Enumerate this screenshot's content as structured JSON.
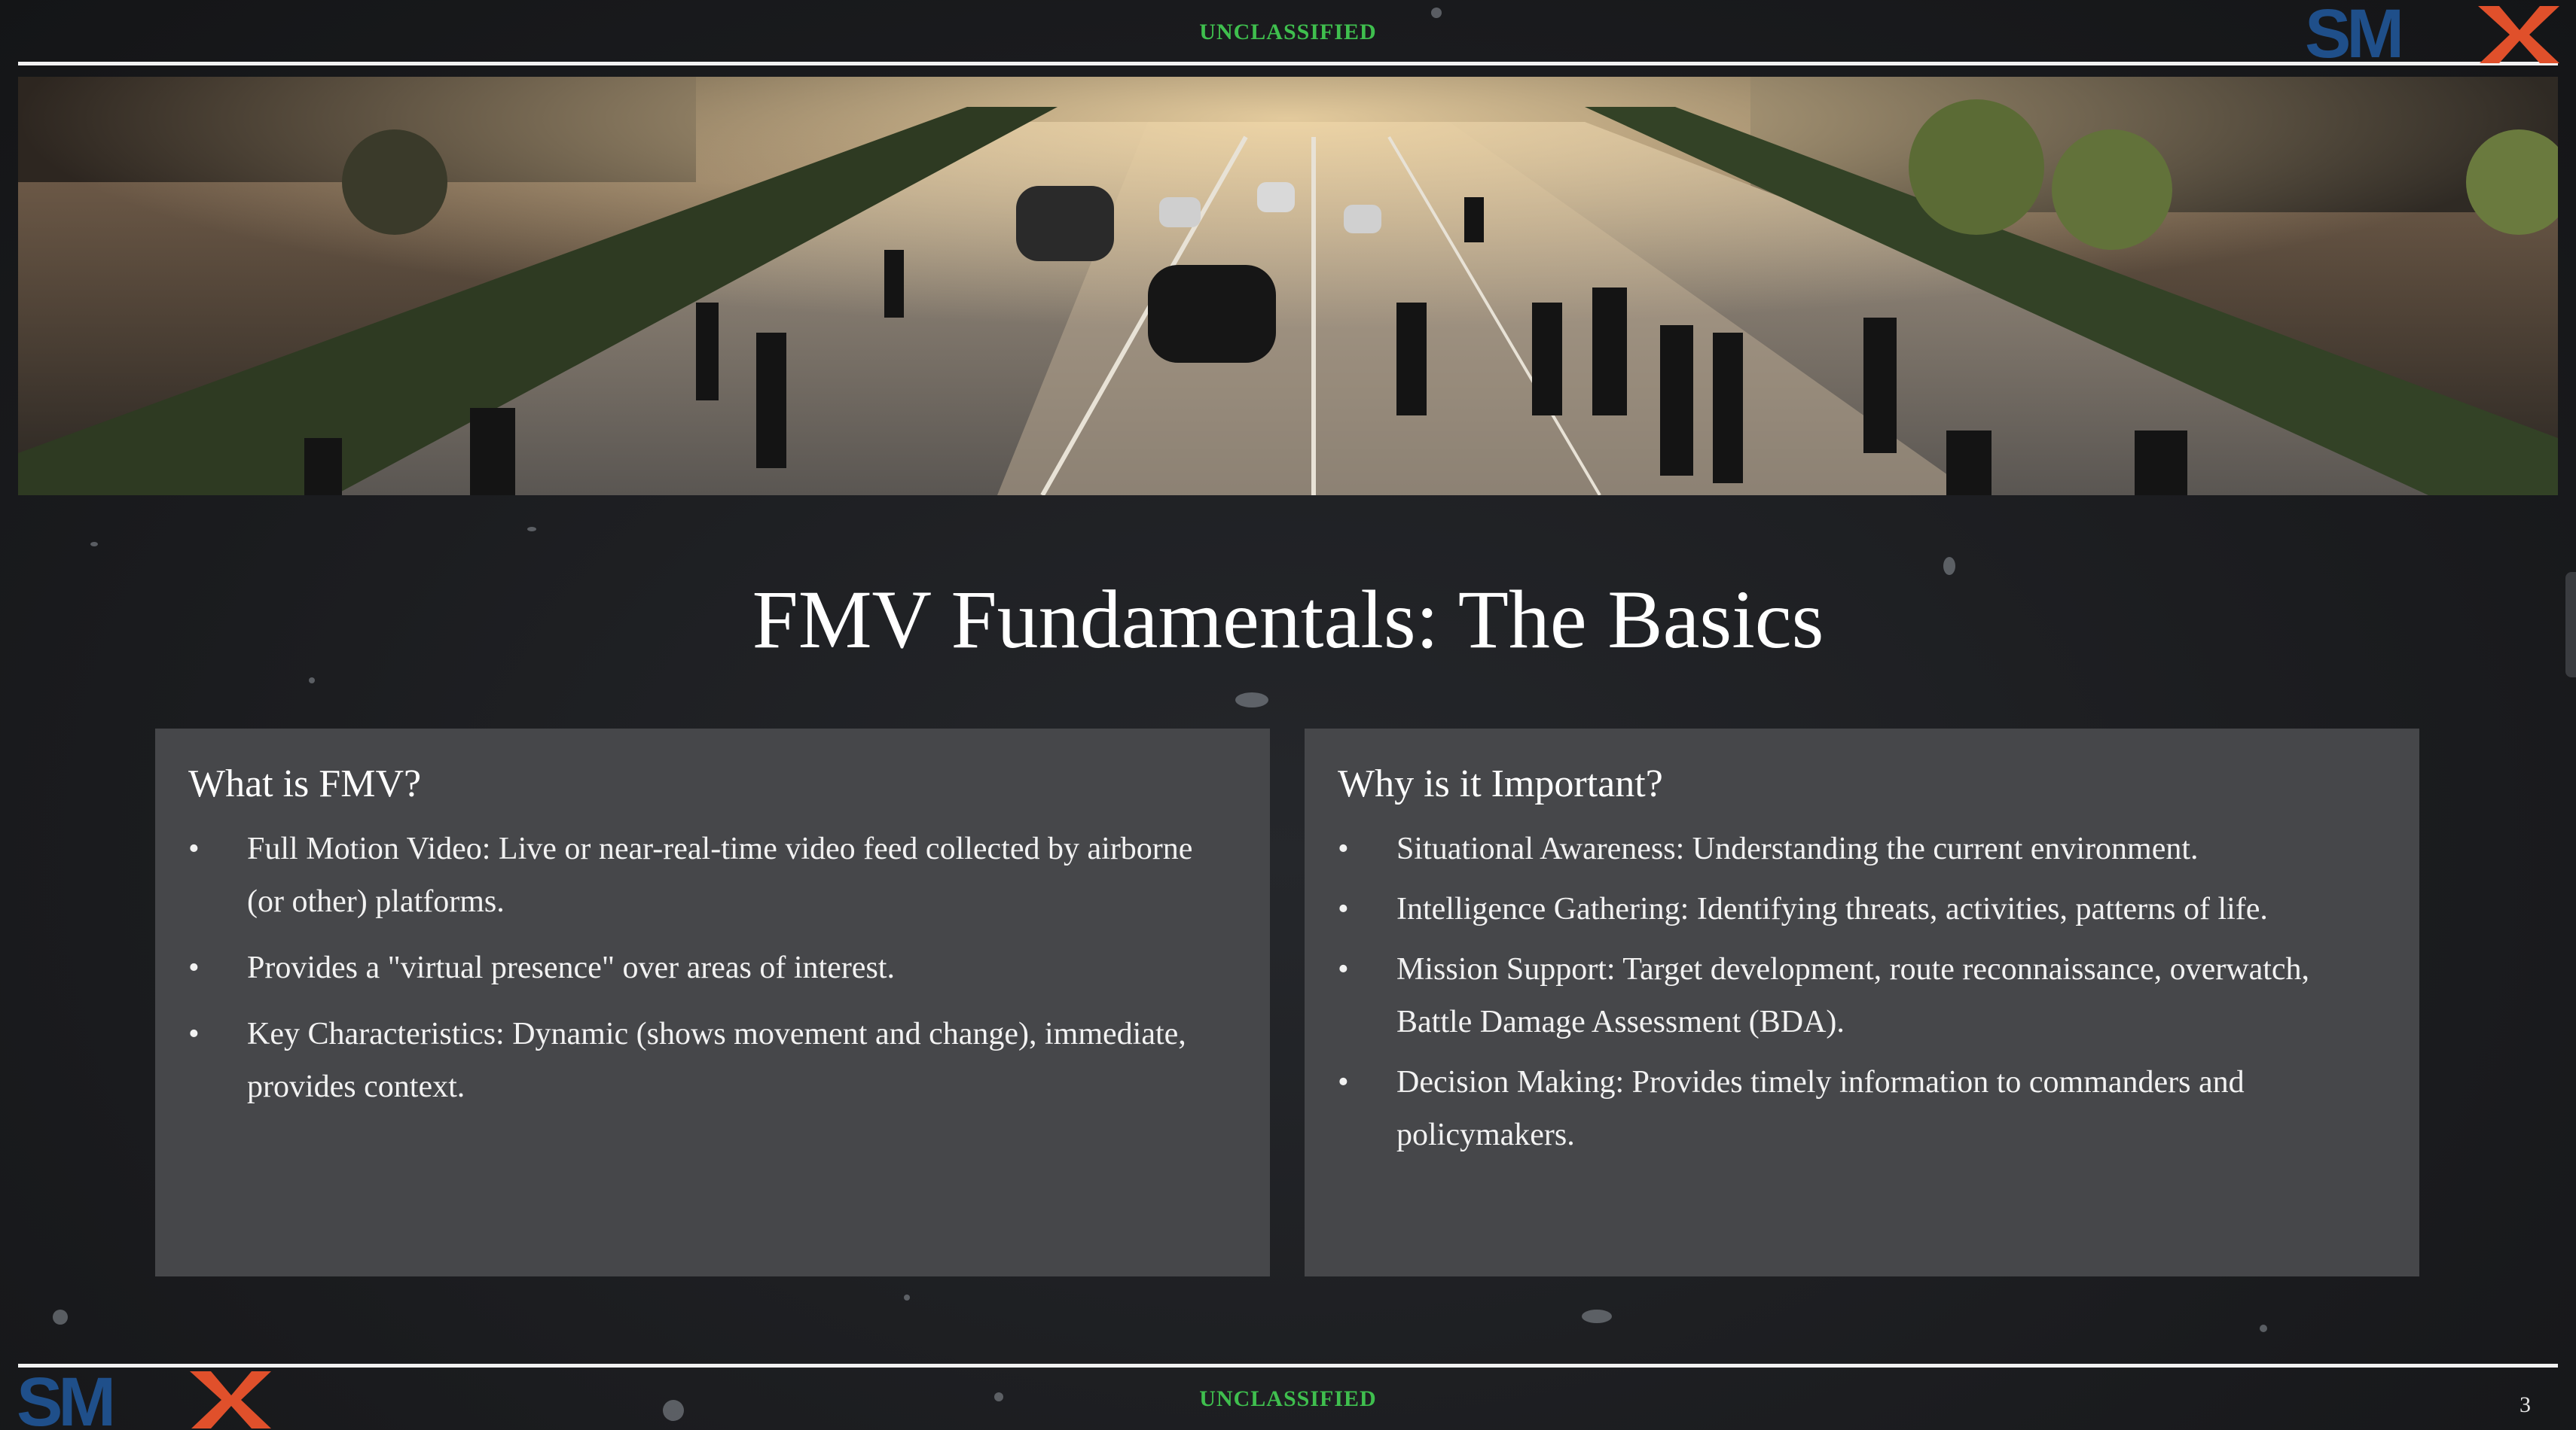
{
  "classification": {
    "top": "UNCLASSIFIED",
    "bottom": "UNCLASSIFIED"
  },
  "logo": {
    "text": "SMX",
    "colors": {
      "sm": "#1f4f8a",
      "x": "#e0502b"
    }
  },
  "hero_image": {
    "description": "city street with cars and people walking"
  },
  "title": "FMV Fundamentals: The Basics",
  "cards": [
    {
      "heading": "What is FMV?",
      "items": [
        "Full Motion Video: Live or near-real-time video feed collected by airborne (or other) platforms.",
        "Provides a \"virtual presence\" over areas of interest.",
        "Key Characteristics: Dynamic (shows movement and change), immediate, provides context."
      ]
    },
    {
      "heading": "Why is it Important?",
      "items": [
        "Situational Awareness: Understanding the current environment.",
        "Intelligence Gathering: Identifying threats, activities, patterns of life.",
        "Mission Support: Target development, route reconnaissance, overwatch, Battle Damage Assessment (BDA).",
        "Decision Making: Provides timely information to commanders and policymakers."
      ]
    }
  ],
  "page_number": "3",
  "bullet_glyph": "•",
  "colors": {
    "accent": "#3fbf4e",
    "card": "#46474a",
    "background": "#1c1e21"
  }
}
